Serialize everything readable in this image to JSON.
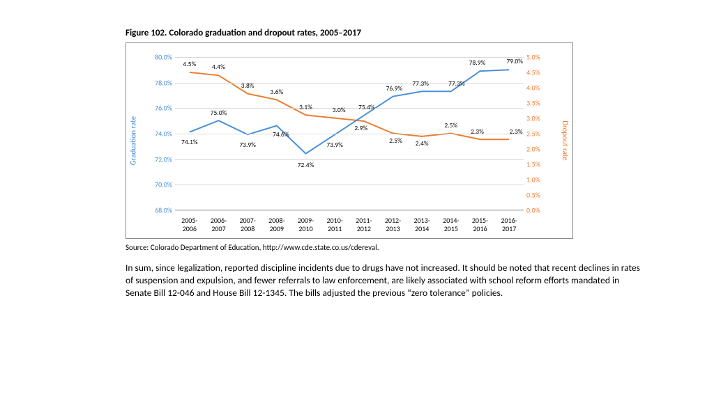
{
  "chart": {
    "title": "Figure 102. Colorado graduation and dropout rates, 2005–2017",
    "source": "Source: Colorado Department of Education, http://www.cde.state.co.us/cdereval.",
    "left_axis": {
      "title": "Graduation rate",
      "color": "#4a90d9",
      "min": 68.0,
      "max": 80.0,
      "step": 2.0,
      "ticks": [
        "68.0%",
        "70.0%",
        "72.0%",
        "74.0%",
        "76.0%",
        "78.0%",
        "80.0%"
      ]
    },
    "right_axis": {
      "title": "Dropout rate",
      "color": "#ed7d31",
      "min": 0.0,
      "max": 5.0,
      "step": 0.5,
      "ticks": [
        "0.0%",
        "0.5%",
        "1.0%",
        "1.5%",
        "2.0%",
        "2.5%",
        "3.0%",
        "3.5%",
        "4.0%",
        "4.5%",
        "5.0%"
      ]
    },
    "categories": [
      "2005- 2006",
      "2006- 2007",
      "2007- 2008",
      "2008- 2009",
      "2009- 2010",
      "2010- 2011",
      "2011- 2012",
      "2012- 2013",
      "2013- 2014",
      "2014- 2015",
      "2015- 2016",
      "2016- 2017"
    ],
    "graduation": {
      "color": "#4a90d9",
      "values": [
        74.1,
        75.0,
        73.9,
        74.6,
        72.4,
        73.9,
        75.4,
        76.9,
        77.3,
        77.3,
        78.9,
        79.0
      ],
      "labels": [
        "74.1%",
        "75.0%",
        "73.9%",
        "74.6%",
        "72.4%",
        "73.9%",
        "75.4%",
        "76.9%",
        "77.3%",
        "77.3%",
        "78.9%",
        "79.0%"
      ],
      "label_dy": [
        14,
        -12,
        14,
        12,
        16,
        14,
        -12,
        -12,
        -12,
        -12,
        -12,
        -12
      ],
      "label_dx": [
        0,
        0,
        0,
        6,
        0,
        0,
        4,
        2,
        -2,
        8,
        -4,
        8
      ]
    },
    "dropout": {
      "color": "#ed7d31",
      "values": [
        4.5,
        4.4,
        3.8,
        3.6,
        3.1,
        3.0,
        2.9,
        2.5,
        2.4,
        2.5,
        2.3,
        2.3
      ],
      "labels": [
        "4.5%",
        "4.4%",
        "3.8%",
        "3.6%",
        "3.1%",
        "3.0%",
        "2.9%",
        "2.5%",
        "2.4%",
        "2.5%",
        "2.3%",
        "2.3%"
      ],
      "label_dy": [
        -12,
        -12,
        -12,
        -12,
        -12,
        -12,
        10,
        10,
        10,
        -12,
        -12,
        -12
      ],
      "label_dx": [
        0,
        0,
        0,
        0,
        0,
        6,
        -4,
        4,
        0,
        0,
        -4,
        10
      ]
    },
    "line_width": 2.0,
    "grid_color": "#d9d9d9",
    "tick_fontsize": 10,
    "label_fontsize": 9.5,
    "title_fontsize": 13
  },
  "body": "In sum, since legalization, reported discipline incidents due to drugs have not increased. It should be noted that recent declines in rates of suspension and expulsion, and fewer referrals to law enforcement, are likely associated with school reform efforts mandated in Senate Bill 12-046 and House Bill 12-1345. The bills adjusted the previous “zero tolerance” policies."
}
